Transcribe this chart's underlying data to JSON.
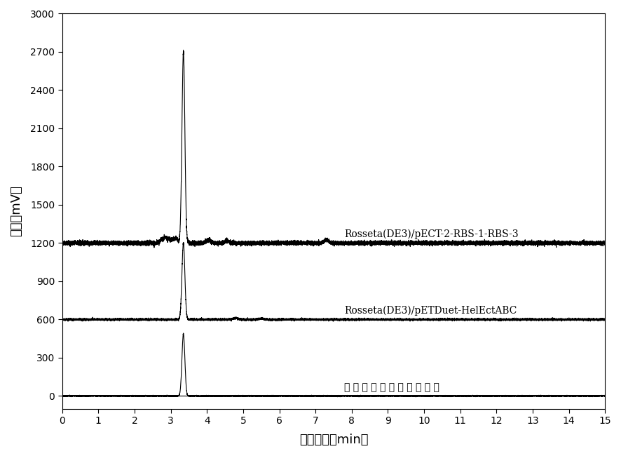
{
  "xlim": [
    0,
    15
  ],
  "ylim": [
    -100,
    3000
  ],
  "yticks": [
    0,
    300,
    600,
    900,
    1200,
    1500,
    1800,
    2100,
    2400,
    2700,
    3000
  ],
  "xticks": [
    0,
    1,
    2,
    3,
    4,
    5,
    6,
    7,
    8,
    9,
    10,
    11,
    12,
    13,
    14,
    15
  ],
  "xlabel": "保留时间（min）",
  "ylabel": "强度（mV）",
  "label1": "Rosseta(DE3)/pECT-2-RBS-1-RBS-3",
  "label2": "Rosseta(DE3)/pETDuet-HelEctABC",
  "label3": "四氢甲基嚂啰缧酸标准品",
  "baseline1": 1200,
  "baseline2": 600,
  "baseline3": 0,
  "peak_x": 3.35,
  "peak1_height": 1500,
  "peak2_height": 600,
  "peak3_height": 490,
  "noise_amplitude1": 8,
  "noise_amplitude2": 4,
  "noise_amplitude3": 2,
  "line_color": "#000000",
  "background_color": "#ffffff",
  "figsize": [
    8.86,
    6.5
  ],
  "dpi": 100
}
